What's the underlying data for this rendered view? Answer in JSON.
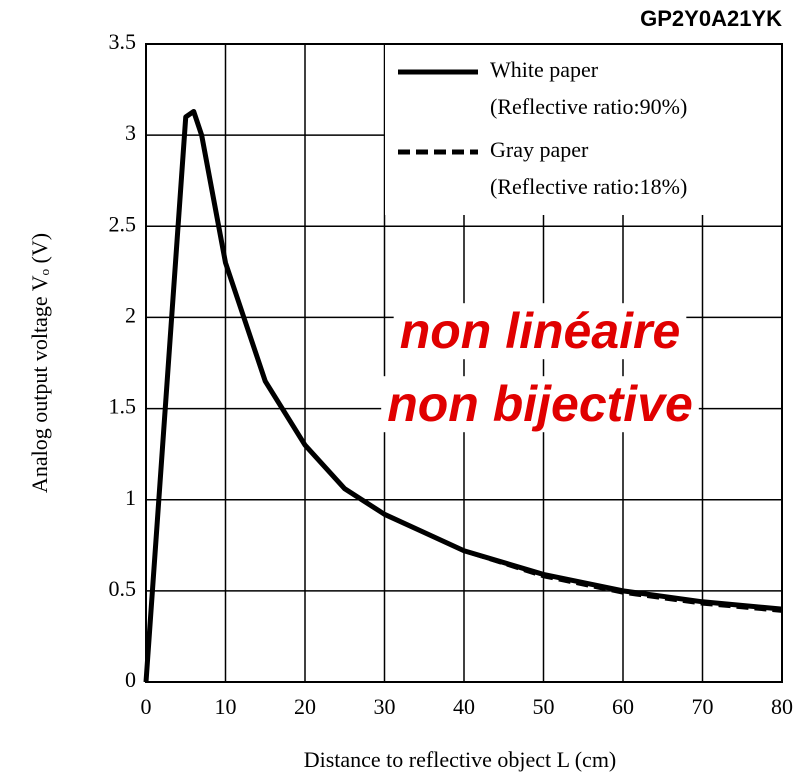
{
  "chart_data": {
    "type": "line",
    "subtitle": "GP2Y0A21YK",
    "x_label": "Distance to reflective object L (cm)",
    "y_label": "Analog output voltage Vₒ (V)",
    "annotations": [
      "non linéaire",
      "non bijective"
    ],
    "xlim": [
      0,
      80
    ],
    "xticks": [
      0,
      10,
      20,
      30,
      40,
      50,
      60,
      70,
      80
    ],
    "ylim": [
      0,
      3.5
    ],
    "yticks": [
      0,
      0.5,
      1,
      1.5,
      2,
      2.5,
      3,
      3.5
    ],
    "grid": true,
    "legend": "upper right",
    "series": [
      {
        "name": "White paper",
        "note": "(Reflective ratio:90%)",
        "style": "solid",
        "color": "#000000",
        "x": [
          0,
          5,
          6,
          7,
          10,
          15,
          20,
          25,
          30,
          35,
          40,
          50,
          60,
          70,
          80
        ],
        "values": [
          0,
          3.1,
          3.13,
          3.0,
          2.3,
          1.65,
          1.3,
          1.06,
          0.92,
          0.82,
          0.72,
          0.59,
          0.5,
          0.44,
          0.4
        ]
      },
      {
        "name": "Gray paper",
        "note": "(Reflective ratio:18%)",
        "style": "dashed",
        "color": "#000000",
        "x": [
          0,
          5,
          6,
          7,
          10,
          15,
          20,
          25,
          30,
          35,
          40,
          50,
          60,
          70,
          80
        ],
        "values": [
          0,
          3.1,
          3.13,
          3.0,
          2.3,
          1.65,
          1.3,
          1.06,
          0.92,
          0.82,
          0.72,
          0.58,
          0.49,
          0.43,
          0.39
        ]
      }
    ]
  }
}
